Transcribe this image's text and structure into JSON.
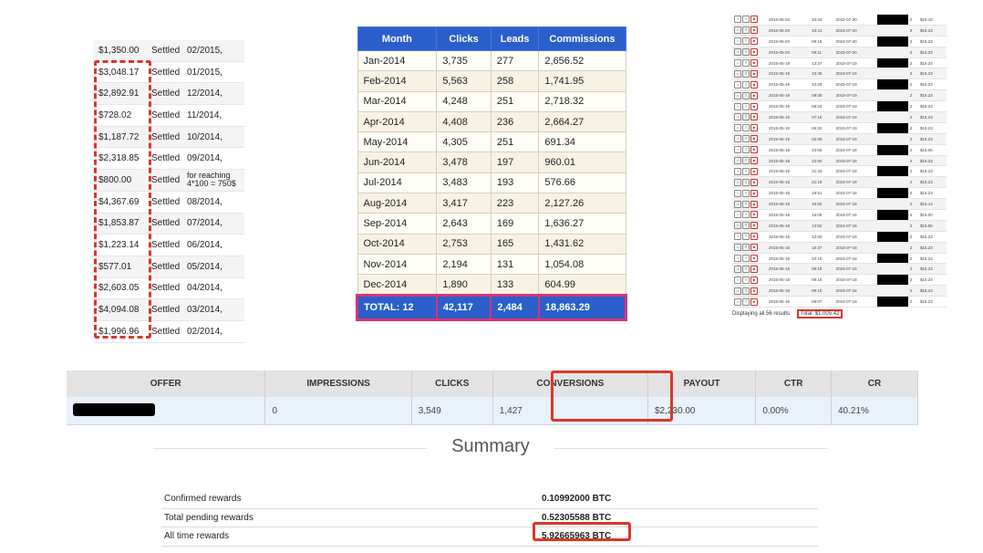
{
  "payments": [
    {
      "amount": "$1,350.00",
      "status": "Settled",
      "date": "02/2015,"
    },
    {
      "amount": "$3,048.17",
      "status": "Settled",
      "date": "01/2015,"
    },
    {
      "amount": "$2,892.91",
      "status": "Settled",
      "date": "12/2014,"
    },
    {
      "amount": "$728.02",
      "status": "Settled",
      "date": "11/2014,"
    },
    {
      "amount": "$1,187.72",
      "status": "Settled",
      "date": "10/2014,"
    },
    {
      "amount": "$2,318.85",
      "status": "Settled",
      "date": "09/2014,"
    },
    {
      "amount": "$800.00",
      "status": "Settled",
      "date": "for reaching 4*100 = 750$"
    },
    {
      "amount": "$4,367.69",
      "status": "Settled",
      "date": "08/2014,"
    },
    {
      "amount": "$1,853.87",
      "status": "Settled",
      "date": "07/2014,"
    },
    {
      "amount": "$1,223.14",
      "status": "Settled",
      "date": "06/2014,"
    },
    {
      "amount": "$577.01",
      "status": "Settled",
      "date": "05/2014,"
    },
    {
      "amount": "$2,603.05",
      "status": "Settled",
      "date": "04/2014,"
    },
    {
      "amount": "$4,094.08",
      "status": "Settled",
      "date": "03/2014,"
    },
    {
      "amount": "$1,996.96",
      "status": "Settled",
      "date": "02/2014,"
    }
  ],
  "monthly": {
    "headers": [
      "Month",
      "Clicks",
      "Leads",
      "Commissions"
    ],
    "rows": [
      [
        "Jan-2014",
        "3,735",
        "277",
        "2,656.52"
      ],
      [
        "Feb-2014",
        "5,563",
        "258",
        "1,741.95"
      ],
      [
        "Mar-2014",
        "4,248",
        "251",
        "2,718.32"
      ],
      [
        "Apr-2014",
        "4,408",
        "236",
        "2,664.27"
      ],
      [
        "May-2014",
        "4,305",
        "251",
        "691.34"
      ],
      [
        "Jun-2014",
        "3,478",
        "197",
        "960.01"
      ],
      [
        "Jul-2014",
        "3,483",
        "193",
        "576.66"
      ],
      [
        "Aug-2014",
        "3,417",
        "223",
        "2,127.26"
      ],
      [
        "Sep-2014",
        "2,643",
        "169",
        "1,636.27"
      ],
      [
        "Oct-2014",
        "2,753",
        "165",
        "1,431.62"
      ],
      [
        "Nov-2014",
        "2,194",
        "131",
        "1,054.08"
      ],
      [
        "Dec-2014",
        "1,890",
        "133",
        "604.99"
      ]
    ],
    "total": [
      "TOTAL: 12",
      "42,117",
      "2,484",
      "18,863.29"
    ]
  },
  "log": {
    "rows": [
      {
        "d1": "2015-05-20",
        "t": "10:44",
        "d2": "2015-07-20",
        "n": "2",
        "amt": "$15.10"
      },
      {
        "d1": "2015-05-20",
        "t": "10:41",
        "d2": "2015-07-20",
        "n": "2",
        "amt": "$15.23"
      },
      {
        "d1": "2015-05-20",
        "t": "09:19",
        "d2": "2015-07-20",
        "n": "2",
        "amt": "$15.23"
      },
      {
        "d1": "2015-05-20",
        "t": "08:11",
        "d2": "2015-07-20",
        "n": "2",
        "amt": "$15.23"
      },
      {
        "d1": "2015-05-19",
        "t": "13:27",
        "d2": "2015-07-19",
        "n": "2",
        "amt": "$15.23"
      },
      {
        "d1": "2015-05-19",
        "t": "10:49",
        "d2": "2015-07-19",
        "n": "2",
        "amt": "$15.23"
      },
      {
        "d1": "2015-05-19",
        "t": "10:29",
        "d2": "2015-07-19",
        "n": "2",
        "amt": "$15.23"
      },
      {
        "d1": "2015-05-19",
        "t": "09:05",
        "d2": "2015-07-19",
        "n": "2",
        "amt": "$15.23"
      },
      {
        "d1": "2015-05-19",
        "t": "08:53",
        "d2": "2015-07-19",
        "n": "2",
        "amt": "$15.23"
      },
      {
        "d1": "2015-05-19",
        "t": "07:10",
        "d2": "2015-07-19",
        "n": "2",
        "amt": "$15.23"
      },
      {
        "d1": "2015-05-19",
        "t": "06:32",
        "d2": "2015-07-19",
        "n": "2",
        "amt": "$15.23"
      },
      {
        "d1": "2015-05-19",
        "t": "02:25",
        "d2": "2015-07-19",
        "n": "2",
        "amt": "$15.23"
      },
      {
        "d1": "2015-05-18",
        "t": "23:55",
        "d2": "2015-07-18",
        "n": "2",
        "amt": "$15.06"
      },
      {
        "d1": "2015-05-18",
        "t": "22:50",
        "d2": "2015-07-18",
        "n": "2",
        "amt": "$15.23"
      },
      {
        "d1": "2015-05-18",
        "t": "21:43",
        "d2": "2015-07-18",
        "n": "2",
        "amt": "$15.23"
      },
      {
        "d1": "2015-05-18",
        "t": "21:19",
        "d2": "2015-07-18",
        "n": "2",
        "amt": "$15.23"
      },
      {
        "d1": "2015-05-18",
        "t": "19:51",
        "d2": "2015-07-18",
        "n": "2",
        "amt": "$15.23"
      },
      {
        "d1": "2015-05-18",
        "t": "16:52",
        "d2": "2015-07-18",
        "n": "2",
        "amt": "$15.14"
      },
      {
        "d1": "2015-05-18",
        "t": "15:05",
        "d2": "2015-07-18",
        "n": "2",
        "amt": "$15.00"
      },
      {
        "d1": "2015-05-18",
        "t": "13:52",
        "d2": "2015-07-18",
        "n": "2",
        "amt": "$15.06"
      },
      {
        "d1": "2015-05-18",
        "t": "12:00",
        "d2": "2015-07-18",
        "n": "2",
        "amt": "$15.23"
      },
      {
        "d1": "2015-05-18",
        "t": "10:37",
        "d2": "2015-07-18",
        "n": "2",
        "amt": "$15.23"
      },
      {
        "d1": "2015-05-18",
        "t": "10:16",
        "d2": "2015-07-18",
        "n": "2",
        "amt": "$15.23"
      },
      {
        "d1": "2015-05-18",
        "t": "09:18",
        "d2": "2015-07-18",
        "n": "2",
        "amt": "$15.23"
      },
      {
        "d1": "2015-05-18",
        "t": "09:16",
        "d2": "2015-07-18",
        "n": "2",
        "amt": "$15.23"
      },
      {
        "d1": "2015-05-18",
        "t": "09:10",
        "d2": "2015-07-18",
        "n": "2",
        "amt": "$15.23"
      },
      {
        "d1": "2015-05-18",
        "t": "09:07",
        "d2": "2015-07-18",
        "n": "2",
        "amt": "$15.23"
      }
    ],
    "displaying": "Displaying all 56 results",
    "total": "Total: $1,005.42"
  },
  "offer": {
    "headers": [
      "OFFER",
      "IMPRESSIONS",
      "CLICKS",
      "CONVERSIONS",
      "PAYOUT",
      "CTR",
      "CR"
    ],
    "row": [
      "",
      "0",
      "3,549",
      "1,427",
      "$2,230.00",
      "0.00%",
      "40.21%"
    ]
  },
  "summary": {
    "title": "Summary",
    "rows": [
      {
        "label": "Confirmed rewards",
        "value": "0.10992000 BTC"
      },
      {
        "label": "Total pending rewards",
        "value": "0.52305588 BTC"
      },
      {
        "label": "All time rewards",
        "value": "5.92665963 BTC"
      }
    ]
  },
  "colors": {
    "highlight": "#d9372a",
    "table_header_blue": "#2a5fcb"
  }
}
